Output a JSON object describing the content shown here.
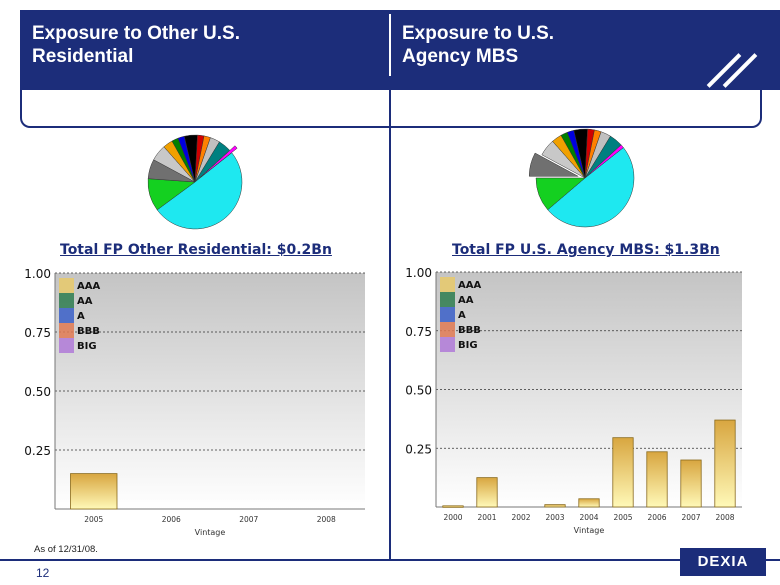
{
  "header": {
    "left_title_line1": "Exposure to Other U.S.",
    "left_title_line2": "Residential",
    "right_title_line1": "Exposure to U.S.",
    "right_title_line2": "Agency MBS"
  },
  "colors": {
    "brand_navy": "#1c2d7a",
    "AAA": "#e8c96a",
    "AA": "#2e7d4f",
    "A": "#3a5fc8",
    "BBB": "#e07a52",
    "BIG": "#b07ad8"
  },
  "legend": [
    "AAA",
    "AA",
    "A",
    "BBB",
    "BIG"
  ],
  "pies": [
    {
      "slices": [
        {
          "value": 45,
          "color": "#1ee8f0"
        },
        {
          "value": 10,
          "color": "#14d020"
        },
        {
          "value": 6,
          "color": "#707070"
        },
        {
          "value": 5,
          "color": "#c8c8c8"
        },
        {
          "value": 3,
          "color": "#f0a000"
        },
        {
          "value": 2,
          "color": "#008000"
        },
        {
          "value": 2,
          "color": "#0000e0"
        },
        {
          "value": 4,
          "color": "#000000"
        },
        {
          "value": 2,
          "color": "#d00000"
        },
        {
          "value": 2,
          "color": "#ff8000"
        },
        {
          "value": 3,
          "color": "#c0c0c0"
        },
        {
          "value": 4,
          "color": "#008080"
        },
        {
          "value": 1,
          "color": "#ff00ff"
        }
      ],
      "explode_index": 12
    },
    {
      "slices": [
        {
          "value": 44,
          "color": "#1ee8f0"
        },
        {
          "value": 10,
          "color": "#14d020"
        },
        {
          "value": 7,
          "color": "#707070"
        },
        {
          "value": 5,
          "color": "#c8c8c8"
        },
        {
          "value": 3,
          "color": "#f0a000"
        },
        {
          "value": 2,
          "color": "#008000"
        },
        {
          "value": 2,
          "color": "#0000e0"
        },
        {
          "value": 4,
          "color": "#000000"
        },
        {
          "value": 2,
          "color": "#d00000"
        },
        {
          "value": 2,
          "color": "#ff8000"
        },
        {
          "value": 3,
          "color": "#c0c0c0"
        },
        {
          "value": 4,
          "color": "#008080"
        },
        {
          "value": 1,
          "color": "#ff00ff"
        }
      ],
      "explode_index": 2
    }
  ],
  "chart_data": [
    {
      "type": "bar",
      "title": "Total FP Other Residential: $0.2Bn",
      "xlabel": "Vintage",
      "categories": [
        "2005",
        "2006",
        "2007",
        "2008"
      ],
      "values": [
        0.15,
        0,
        0,
        0
      ],
      "yticks": [
        "1.00",
        "0.75",
        "0.50",
        "0.25"
      ],
      "ytick_values": [
        1.0,
        0.75,
        0.5,
        0.25
      ],
      "ylim": [
        0,
        1
      ],
      "legend": [
        "AAA",
        "AA",
        "A",
        "BBB",
        "BIG"
      ],
      "legend_placement": "top-left",
      "grid": true
    },
    {
      "type": "bar",
      "title": "Total FP U.S. Agency MBS: $1.3Bn",
      "xlabel": "Vintage",
      "categories": [
        "2000",
        "2001",
        "2002",
        "2003",
        "2004",
        "2005",
        "2006",
        "2007",
        "2008"
      ],
      "values": [
        0.005,
        0.125,
        0,
        0.01,
        0.035,
        0.295,
        0.235,
        0.2,
        0.37
      ],
      "yticks": [
        "1.00",
        "0.75",
        "0.50",
        "0.25"
      ],
      "ytick_values": [
        1.0,
        0.75,
        0.5,
        0.25
      ],
      "ylim": [
        0,
        1
      ],
      "legend": [
        "AAA",
        "AA",
        "A",
        "BBB",
        "BIG"
      ],
      "legend_placement": "top-left",
      "grid": true
    }
  ],
  "footer": {
    "note": "As of 12/31/08.",
    "page": "12",
    "logo": "DEXIA"
  }
}
